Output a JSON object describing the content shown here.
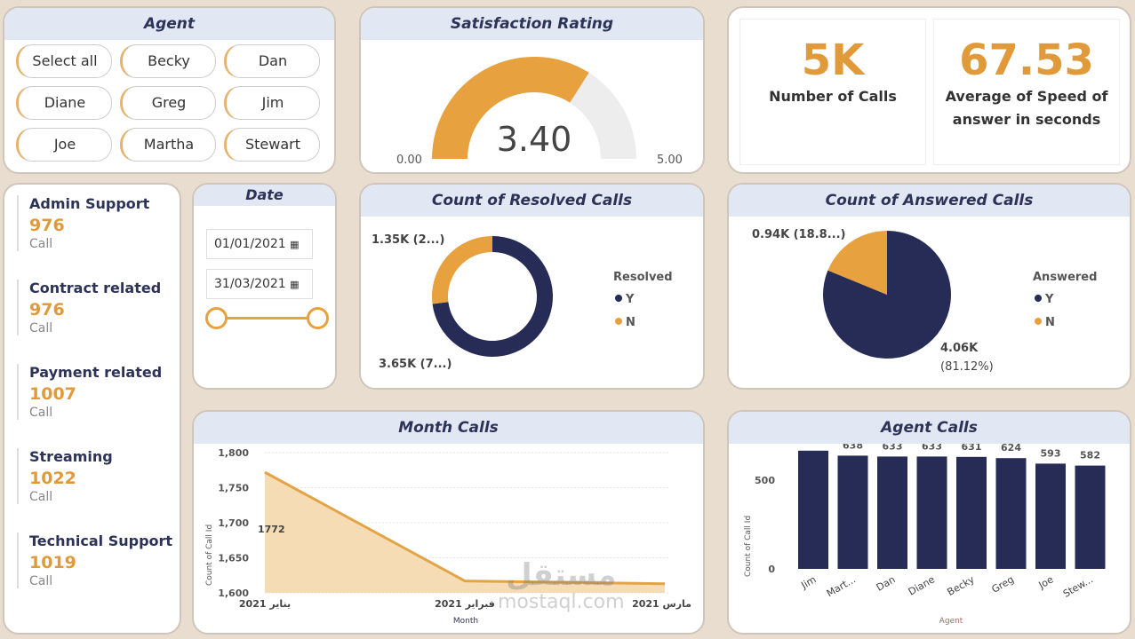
{
  "agent_slicer": {
    "title": "Agent",
    "options": [
      "Select all",
      "Becky",
      "Dan",
      "Diane",
      "Greg",
      "Jim",
      "Joe",
      "Martha",
      "Stewart"
    ]
  },
  "satisfaction": {
    "title": "Satisfaction Rating",
    "value": "3.40",
    "min": "0.00",
    "max": "5.00",
    "fraction": 0.68,
    "color": "#e8a13f"
  },
  "kpis": [
    {
      "value": "5K",
      "label": "Number of Calls"
    },
    {
      "value": "67.53",
      "label": "Average of Speed of answer in seconds"
    }
  ],
  "categories": [
    {
      "name": "Admin Support",
      "value": "976",
      "unit": "Call"
    },
    {
      "name": "Contract related",
      "value": "976",
      "unit": "Call"
    },
    {
      "name": "Payment related",
      "value": "1007",
      "unit": "Call"
    },
    {
      "name": "Streaming",
      "value": "1022",
      "unit": "Call"
    },
    {
      "name": "Technical Support",
      "value": "1019",
      "unit": "Call"
    }
  ],
  "date": {
    "title": "Date",
    "start": "01/01/2021",
    "end": "31/03/2021",
    "calendar_icon": "calendar-icon"
  },
  "resolved": {
    "title": "Count of Resolved Calls",
    "legend_title": "Resolved",
    "legend": [
      "Y",
      "N"
    ],
    "label_n": "1.35K (2...)",
    "label_y": "3.65K (7...)"
  },
  "answered": {
    "title": "Count of Answered Calls",
    "legend_title": "Answered",
    "legend": [
      "Y",
      "N"
    ],
    "label_n": "0.94K (18.8...)",
    "label_y1": "4.06K",
    "label_y2": "(81.12%)"
  },
  "colors": {
    "navy": "#262c56",
    "orange": "#e8a13f"
  },
  "chart_data": [
    {
      "type": "area",
      "title": "Month Calls",
      "xlabel": "Month",
      "ylabel": "Count of Call Id",
      "categories": [
        "يناير 2021",
        "فبراير 2021",
        "مارس 2021"
      ],
      "values": [
        1772,
        1617,
        1613
      ],
      "ylim": [
        1600,
        1800
      ],
      "yticks": [
        "1,600",
        "1,650",
        "1,700",
        "1,750",
        "1,800"
      ],
      "data_label": "1772",
      "grid": true
    },
    {
      "type": "bar",
      "title": "Agent Calls",
      "xlabel": "Agent",
      "ylabel": "Count of Call Id",
      "categories": [
        "Jim",
        "Mart...",
        "Dan",
        "Diane",
        "Becky",
        "Greg",
        "Joe",
        "Stew..."
      ],
      "values": [
        666,
        638,
        633,
        633,
        631,
        624,
        593,
        582
      ],
      "yticks": [
        "0",
        "500"
      ],
      "ylim": [
        0,
        700
      ]
    },
    {
      "type": "pie",
      "title": "Count of Resolved Calls",
      "categories": [
        "Y",
        "N"
      ],
      "values": [
        3650,
        1350
      ]
    },
    {
      "type": "pie",
      "title": "Count of Answered Calls",
      "categories": [
        "Y",
        "N"
      ],
      "values": [
        4060,
        940
      ]
    }
  ],
  "watermark": {
    "arabic": "مستقل",
    "latin": "mostaql.com"
  }
}
